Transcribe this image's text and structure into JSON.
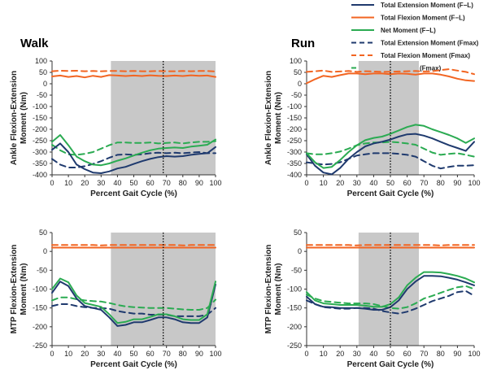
{
  "legend": [
    {
      "label": "Total Extension Moment (F−L)",
      "color": "#1f3a6e",
      "dash": false
    },
    {
      "label": "Total Flexion Moment (F−L)",
      "color": "#f26522",
      "dash": false
    },
    {
      "label": "Net Moment (F−L)",
      "color": "#2bab52",
      "dash": false
    },
    {
      "label": "Total Extension Moment (Fmax)",
      "color": "#1f3a6e",
      "dash": true
    },
    {
      "label": "Total Flexion Moment (Fmax)",
      "color": "#f26522",
      "dash": true
    },
    {
      "label": "Net Moment (Fmax)",
      "color": "#2bab52",
      "dash": true
    }
  ],
  "colors": {
    "extension": "#1f3a6e",
    "flexion": "#f26522",
    "net": "#2bab52",
    "shade": "#c8c8c8"
  },
  "chart_data": [
    {
      "type": "line",
      "title": "Walk",
      "xlabel": "Percent Gait Cycle (%)",
      "ylabel": "Ankle Flexion-Extension Moment (Nm)",
      "xlim": [
        0,
        100
      ],
      "ylim": [
        -400,
        100
      ],
      "xticks": [
        0,
        10,
        20,
        30,
        40,
        50,
        60,
        70,
        80,
        90,
        100
      ],
      "yticks": [
        -400,
        -350,
        -300,
        -250,
        -200,
        -150,
        -100,
        -50,
        0,
        50,
        100
      ],
      "shaded_region": [
        36,
        100
      ],
      "vline": 68,
      "x": [
        0,
        5,
        10,
        15,
        20,
        25,
        30,
        35,
        40,
        45,
        50,
        55,
        60,
        65,
        70,
        75,
        80,
        85,
        90,
        95,
        100
      ],
      "series": [
        {
          "name": "Total Extension Moment (F−L)",
          "values": [
            -290,
            -262,
            -300,
            -355,
            -375,
            -390,
            -393,
            -385,
            -372,
            -365,
            -352,
            -340,
            -330,
            -322,
            -318,
            -320,
            -318,
            -312,
            -308,
            -305,
            -278
          ]
        },
        {
          "name": "Total Flexion Moment (F−L)",
          "values": [
            32,
            36,
            30,
            34,
            28,
            35,
            30,
            38,
            36,
            34,
            36,
            34,
            37,
            35,
            34,
            36,
            34,
            37,
            35,
            36,
            30
          ]
        },
        {
          "name": "Net Moment (F−L)",
          "values": [
            -255,
            -225,
            -270,
            -320,
            -340,
            -355,
            -358,
            -350,
            -338,
            -328,
            -315,
            -303,
            -292,
            -285,
            -282,
            -280,
            -282,
            -276,
            -272,
            -268,
            -245
          ]
        },
        {
          "name": "Total Extension Moment (Fmax)",
          "values": [
            -330,
            -355,
            -368,
            -368,
            -362,
            -352,
            -340,
            -325,
            -312,
            -310,
            -312,
            -310,
            -305,
            -303,
            -305,
            -303,
            -305,
            -302,
            -300,
            -305,
            -305
          ]
        },
        {
          "name": "Total Flexion Moment (Fmax)",
          "values": [
            55,
            57,
            56,
            57,
            55,
            56,
            55,
            56,
            56,
            55,
            56,
            55,
            55,
            56,
            55,
            55,
            56,
            55,
            56,
            56,
            54
          ]
        },
        {
          "name": "Net Moment (Fmax)",
          "values": [
            -268,
            -292,
            -310,
            -312,
            -308,
            -300,
            -285,
            -270,
            -258,
            -258,
            -260,
            -260,
            -258,
            -262,
            -260,
            -258,
            -262,
            -258,
            -255,
            -255,
            -252
          ]
        }
      ]
    },
    {
      "type": "line",
      "title": "Run",
      "xlabel": "Percent Gait Cycle (%)",
      "ylabel": "Ankle Flexion-Extension Moment (Nm)",
      "xlim": [
        0,
        100
      ],
      "ylim": [
        -400,
        100
      ],
      "xticks": [
        0,
        10,
        20,
        30,
        40,
        50,
        60,
        70,
        80,
        90,
        100
      ],
      "yticks": [
        -400,
        -350,
        -300,
        -250,
        -200,
        -150,
        -100,
        -50,
        0,
        50,
        100
      ],
      "shaded_region": [
        31,
        67
      ],
      "vline": 50,
      "x": [
        0,
        5,
        10,
        15,
        20,
        25,
        30,
        35,
        40,
        45,
        50,
        55,
        60,
        65,
        70,
        75,
        80,
        85,
        90,
        95,
        100
      ],
      "series": [
        {
          "name": "Total Extension Moment (F−L)",
          "values": [
            -310,
            -360,
            -390,
            -398,
            -370,
            -330,
            -300,
            -275,
            -262,
            -255,
            -245,
            -232,
            -222,
            -220,
            -228,
            -240,
            -255,
            -270,
            -282,
            -295,
            -255
          ]
        },
        {
          "name": "Total Flexion Moment (F−L)",
          "values": [
            2,
            20,
            35,
            30,
            38,
            45,
            45,
            42,
            45,
            45,
            42,
            45,
            44,
            40,
            45,
            45,
            40,
            32,
            22,
            15,
            12
          ]
        },
        {
          "name": "Net Moment (F−L)",
          "values": [
            -305,
            -345,
            -370,
            -365,
            -335,
            -300,
            -270,
            -248,
            -238,
            -232,
            -220,
            -205,
            -190,
            -180,
            -185,
            -200,
            -212,
            -225,
            -240,
            -260,
            -240
          ]
        },
        {
          "name": "Total Extension Moment (Fmax)",
          "values": [
            -345,
            -350,
            -355,
            -352,
            -345,
            -330,
            -315,
            -310,
            -305,
            -305,
            -305,
            -308,
            -312,
            -320,
            -340,
            -360,
            -372,
            -365,
            -360,
            -360,
            -358
          ]
        },
        {
          "name": "Total Flexion Moment (Fmax)",
          "values": [
            52,
            55,
            58,
            52,
            54,
            56,
            52,
            55,
            54,
            52,
            53,
            54,
            55,
            56,
            54,
            55,
            60,
            64,
            58,
            52,
            42
          ]
        },
        {
          "name": "Net Moment (Fmax)",
          "values": [
            -305,
            -310,
            -310,
            -305,
            -298,
            -285,
            -270,
            -262,
            -258,
            -258,
            -255,
            -258,
            -262,
            -268,
            -285,
            -302,
            -312,
            -308,
            -305,
            -312,
            -320
          ]
        }
      ]
    },
    {
      "type": "line",
      "title": "",
      "xlabel": "Percent Gait Cycle (%)",
      "ylabel": "MTP Flexion-Extension Moment (Nm)",
      "xlim": [
        0,
        100
      ],
      "ylim": [
        -250,
        50
      ],
      "xticks": [
        0,
        10,
        20,
        30,
        40,
        50,
        60,
        70,
        80,
        90,
        100
      ],
      "yticks": [
        -250,
        -200,
        -150,
        -100,
        -50,
        0,
        50
      ],
      "shaded_region": [
        36,
        100
      ],
      "vline": 68,
      "x": [
        0,
        5,
        10,
        15,
        20,
        25,
        30,
        35,
        40,
        45,
        50,
        55,
        60,
        65,
        70,
        75,
        80,
        85,
        90,
        95,
        100
      ],
      "series": [
        {
          "name": "Total Extension Moment (F−L)",
          "values": [
            -110,
            -80,
            -92,
            -125,
            -145,
            -150,
            -155,
            -175,
            -198,
            -195,
            -188,
            -188,
            -182,
            -175,
            -175,
            -180,
            -188,
            -190,
            -190,
            -175,
            -88
          ]
        },
        {
          "name": "Total Flexion Moment (F−L)",
          "values": [
            10,
            10,
            10,
            10,
            10,
            10,
            10,
            10,
            10,
            10,
            10,
            10,
            10,
            10,
            10,
            10,
            10,
            10,
            10,
            10,
            10
          ]
        },
        {
          "name": "Net Moment (F−L)",
          "values": [
            -100,
            -72,
            -82,
            -117,
            -137,
            -142,
            -147,
            -167,
            -190,
            -187,
            -180,
            -180,
            -174,
            -167,
            -167,
            -172,
            -180,
            -182,
            -182,
            -167,
            -80
          ]
        },
        {
          "name": "Total Extension Moment (Fmax)",
          "values": [
            -145,
            -140,
            -140,
            -145,
            -148,
            -150,
            -150,
            -152,
            -158,
            -162,
            -165,
            -165,
            -168,
            -168,
            -168,
            -172,
            -172,
            -172,
            -172,
            -168,
            -150
          ]
        },
        {
          "name": "Total Flexion Moment (Fmax)",
          "values": [
            17,
            17,
            17,
            17,
            17,
            17,
            16,
            17,
            17,
            17,
            17,
            17,
            17,
            17,
            17,
            17,
            16,
            17,
            17,
            17,
            17
          ]
        },
        {
          "name": "Net Moment (Fmax)",
          "values": [
            -130,
            -122,
            -122,
            -127,
            -130,
            -132,
            -133,
            -137,
            -142,
            -146,
            -148,
            -149,
            -150,
            -150,
            -150,
            -152,
            -154,
            -155,
            -155,
            -150,
            -128
          ]
        }
      ]
    },
    {
      "type": "line",
      "title": "",
      "xlabel": "Percent Gait Cycle (%)",
      "ylabel": "MTP Flexion-Extension Moment (Nm)",
      "xlim": [
        0,
        100
      ],
      "ylim": [
        -250,
        50
      ],
      "xticks": [
        0,
        10,
        20,
        30,
        40,
        50,
        60,
        70,
        80,
        90,
        100
      ],
      "yticks": [
        -250,
        -200,
        -150,
        -100,
        -50,
        0,
        50
      ],
      "shaded_region": [
        31,
        67
      ],
      "vline": 50,
      "x": [
        0,
        5,
        10,
        15,
        20,
        25,
        30,
        35,
        40,
        45,
        50,
        55,
        60,
        65,
        70,
        75,
        80,
        85,
        90,
        95,
        100
      ],
      "series": [
        {
          "name": "Total Extension Moment (F−L)",
          "values": [
            -120,
            -140,
            -147,
            -148,
            -150,
            -150,
            -150,
            -152,
            -155,
            -155,
            -148,
            -130,
            -100,
            -80,
            -65,
            -65,
            -66,
            -70,
            -75,
            -82,
            -90
          ]
        },
        {
          "name": "Total Flexion Moment (F−L)",
          "values": [
            10,
            10,
            10,
            10,
            10,
            10,
            10,
            10,
            10,
            10,
            10,
            10,
            10,
            10,
            10,
            10,
            10,
            10,
            10,
            10,
            10
          ]
        },
        {
          "name": "Net Moment (F−L)",
          "values": [
            -108,
            -130,
            -138,
            -140,
            -142,
            -142,
            -142,
            -144,
            -147,
            -147,
            -140,
            -122,
            -90,
            -70,
            -55,
            -55,
            -56,
            -60,
            -65,
            -72,
            -82
          ]
        },
        {
          "name": "Total Extension Moment (Fmax)",
          "values": [
            -130,
            -140,
            -148,
            -150,
            -152,
            -152,
            -150,
            -150,
            -152,
            -158,
            -162,
            -165,
            -160,
            -152,
            -142,
            -132,
            -125,
            -118,
            -108,
            -105,
            -118
          ]
        },
        {
          "name": "Total Flexion Moment (Fmax)",
          "values": [
            17,
            17,
            17,
            17,
            17,
            17,
            16,
            17,
            17,
            17,
            17,
            17,
            17,
            17,
            17,
            17,
            16,
            17,
            17,
            17,
            17
          ]
        },
        {
          "name": "Net Moment (Fmax)",
          "values": [
            -115,
            -125,
            -132,
            -134,
            -136,
            -138,
            -138,
            -138,
            -140,
            -145,
            -150,
            -152,
            -148,
            -138,
            -125,
            -118,
            -110,
            -102,
            -95,
            -92,
            -100
          ]
        }
      ]
    }
  ]
}
